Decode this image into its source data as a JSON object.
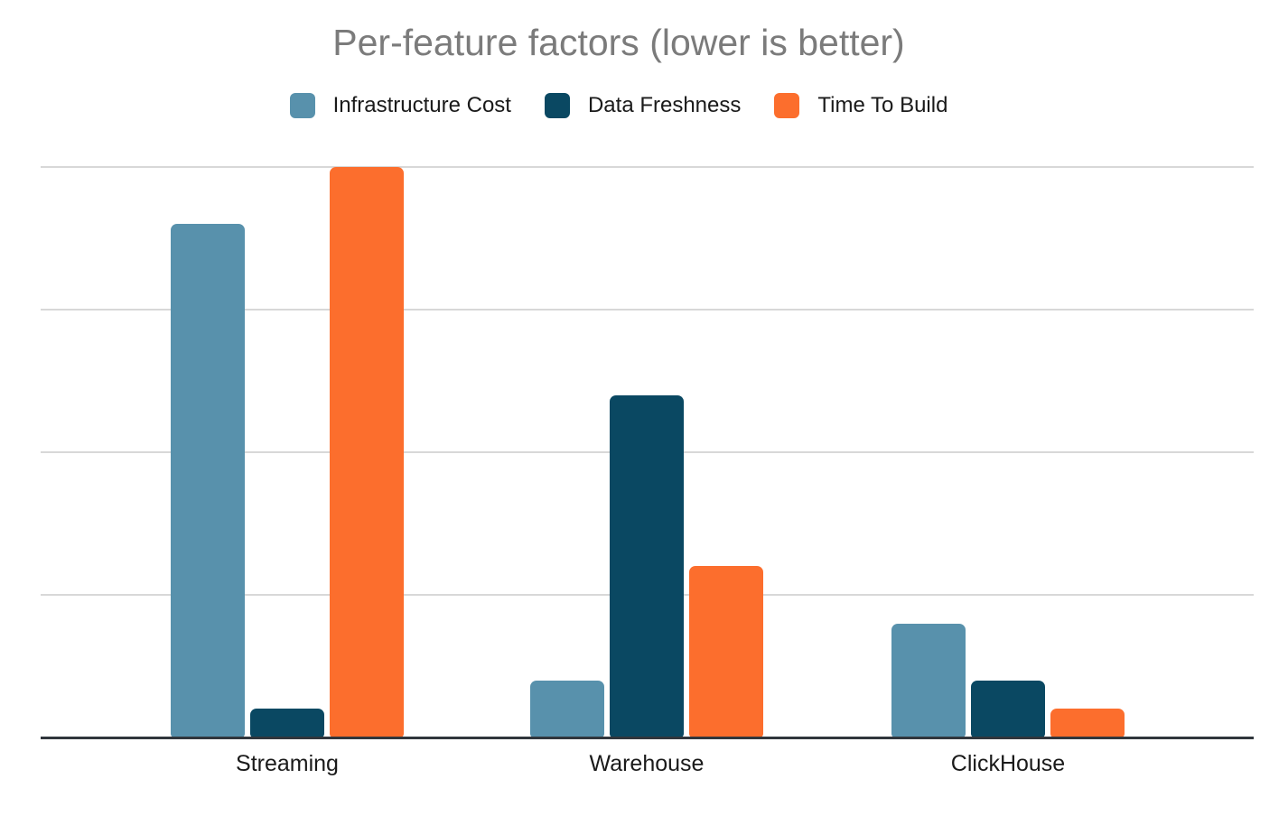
{
  "title": "Per-feature factors (lower is better)",
  "colors": {
    "background": "#ffffff",
    "title_text": "#7b7b7b",
    "label_text": "#1a1a1a",
    "gridline": "#d8d8d8",
    "axis_line": "#30363c",
    "series": {
      "infrastructure_cost": "#5891AC",
      "data_freshness": "#0A4862",
      "time_to_build": "#FC6E2D"
    }
  },
  "chart_data": {
    "type": "bar",
    "title": "Per-feature factors (lower is better)",
    "categories": [
      "Streaming",
      "Warehouse",
      "ClickHouse"
    ],
    "series": [
      {
        "name": "Infrastructure Cost",
        "color": "#5891AC",
        "values": [
          9,
          1,
          2
        ]
      },
      {
        "name": "Data Freshness",
        "color": "#0A4862",
        "values": [
          0.5,
          6,
          1
        ]
      },
      {
        "name": "Time To Build",
        "color": "#FC6E2D",
        "values": [
          10,
          3,
          0.5
        ]
      }
    ],
    "xlabel": "",
    "ylabel": "",
    "ylim": [
      0,
      10
    ],
    "gridline_interval": 2.5,
    "grid": true,
    "y_tick_labels_visible": false,
    "legend_position": "top"
  }
}
